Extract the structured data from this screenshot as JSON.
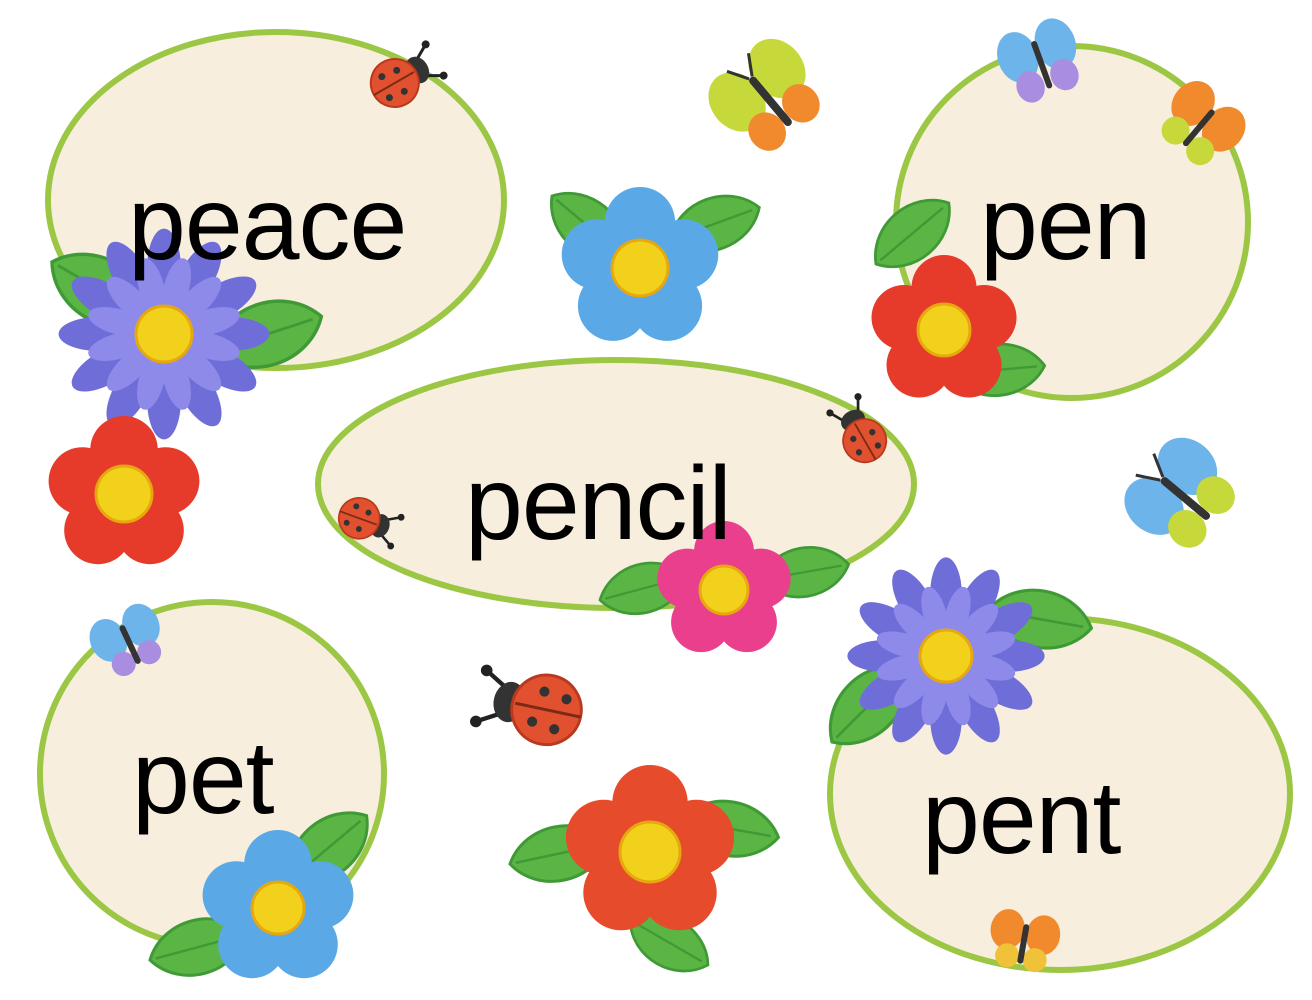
{
  "colors": {
    "background": "#ffffff",
    "card_fill": "#f7eedd",
    "card_border": "#9cc745",
    "leaf": "#5bb545",
    "leaf_dark": "#2f8a2e",
    "word_text": "#000000"
  },
  "words": {
    "peace": "peace",
    "pen": "pen",
    "pencil": "pencil",
    "pet": "pet",
    "pent": "pent"
  },
  "decorations": {
    "flower_colors": [
      "#6f6ed8",
      "#5aa9e6",
      "#e63a2a",
      "#ea3f8d",
      "#e64b2b"
    ],
    "ladybug_color": "#e2512f",
    "butterfly_colors": [
      "#f08a2c",
      "#c7d93a",
      "#6db4ea",
      "#a88de0"
    ]
  }
}
